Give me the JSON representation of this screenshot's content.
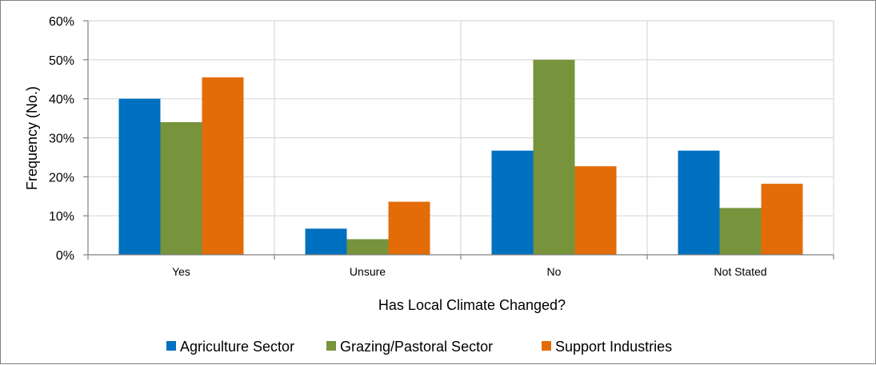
{
  "chart_data": {
    "type": "bar",
    "title": "",
    "xlabel": "Has Local Climate Changed?",
    "ylabel": "Frequency (No.)",
    "ylim": [
      0,
      60
    ],
    "y_ticks": [
      0,
      10,
      20,
      30,
      40,
      50,
      60
    ],
    "y_tick_labels": [
      "0%",
      "10%",
      "20%",
      "30%",
      "40%",
      "50%",
      "60%"
    ],
    "y_unit": "%",
    "grid": true,
    "legend_position": "bottom",
    "categories": [
      "Yes",
      "Unsure",
      "No",
      "Not Stated"
    ],
    "series": [
      {
        "name": "Agriculture Sector",
        "color": "#0070C0",
        "values": [
          40,
          6.7,
          26.7,
          26.7
        ]
      },
      {
        "name": "Grazing/Pastoral Sector",
        "color": "#77933C",
        "values": [
          34,
          4,
          50,
          12
        ]
      },
      {
        "name": "Support Industries",
        "color": "#E36C09",
        "values": [
          45.5,
          13.6,
          22.7,
          18.2
        ]
      }
    ]
  }
}
